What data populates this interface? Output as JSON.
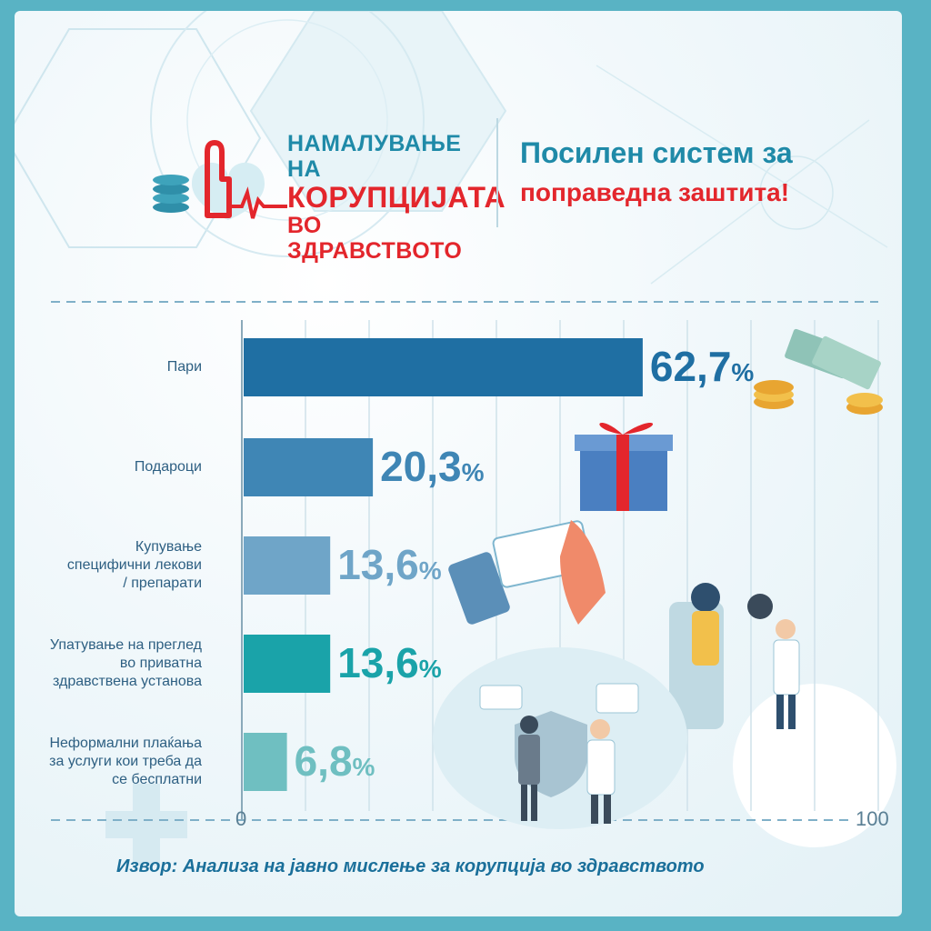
{
  "logo": {
    "line1": "НАМАЛУВАЊЕ НА",
    "line2": "КОРУПЦИЈАТА",
    "line3": "ВО ЗДРАВСТВОТО",
    "icon": "heartbeat-hand-icon"
  },
  "tagline": {
    "line1": "Посилен систем за",
    "line2": "поправедна заштита!"
  },
  "source": "Извор: Анализа на јавно мислење за корупција во здравството",
  "colors": {
    "background": "#59b3c4",
    "brand_blue": "#1f8aa8",
    "brand_red": "#e3262c"
  },
  "chart_data": {
    "type": "bar",
    "orientation": "horizontal",
    "categories": [
      [
        "Пари"
      ],
      [
        "Подароци"
      ],
      [
        "Купување",
        "специфични лекови",
        "/ препарати"
      ],
      [
        "Упатување на преглед",
        "во приватна",
        "здравствена установа"
      ],
      [
        "Неформални плаќања",
        "за услуги кои треба да",
        "се бесплатни"
      ]
    ],
    "values": [
      62.7,
      20.3,
      13.6,
      13.6,
      6.8
    ],
    "value_labels": [
      "62,7",
      "20,3",
      "13,6",
      "13,6",
      "6,8"
    ],
    "value_suffix": "%",
    "bar_colors": [
      "#1f6fa3",
      "#3f86b5",
      "#6fa5c8",
      "#1aa3a9",
      "#6fbfc1"
    ],
    "xlim": [
      0,
      100
    ],
    "tick_labels": [
      "0",
      "100"
    ],
    "grid": true
  }
}
